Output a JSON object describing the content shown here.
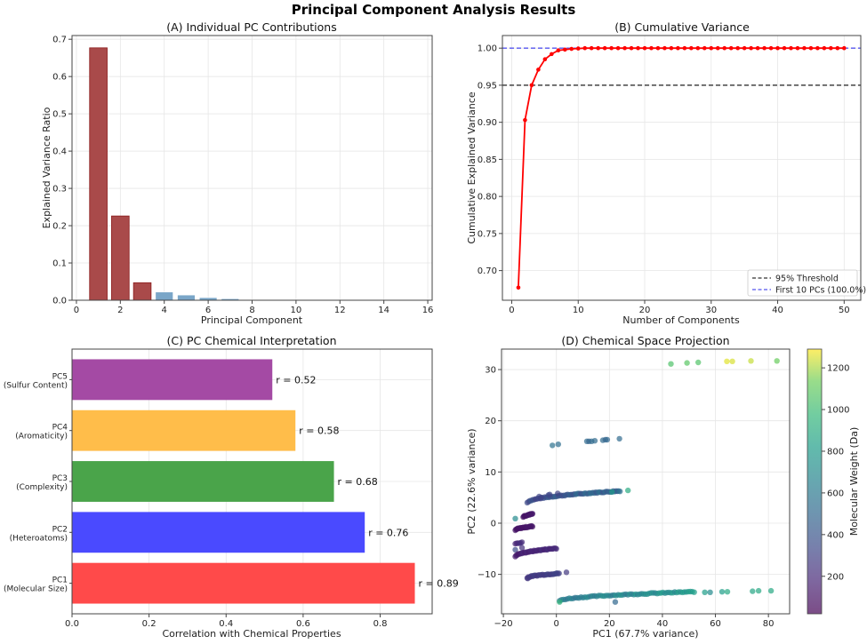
{
  "figure": {
    "title": "Principal Component Analysis Results"
  },
  "chart_data": [
    {
      "id": "A",
      "type": "bar",
      "title": "(A) Individual PC Contributions",
      "xlabel": "Principal Component",
      "ylabel": "Explained Variance Ratio",
      "categories": [
        1,
        2,
        3,
        4,
        5,
        6,
        7,
        8,
        9,
        10,
        11,
        12,
        13,
        14,
        15
      ],
      "values": [
        0.677,
        0.226,
        0.047,
        0.022,
        0.014,
        0.007,
        0.004,
        0.001,
        0.0005,
        0.0003,
        0.0002,
        0.0001,
        0.0001,
        0.0001,
        0.0001
      ],
      "highlight_first_n": 3,
      "colors": {
        "highlight": "#a94a4a",
        "highlight_edge": "#8b1a1a",
        "other": "#7aa6c8"
      },
      "xlim": [
        -0.2,
        16.2
      ],
      "ylim": [
        0,
        0.71
      ],
      "xticks": [
        0,
        2,
        4,
        6,
        8,
        10,
        12,
        14,
        16
      ],
      "yticks": [
        0.0,
        0.1,
        0.2,
        0.3,
        0.4,
        0.5,
        0.6,
        0.7
      ],
      "ytick_labels": [
        "0.0",
        "0.1",
        "0.2",
        "0.3",
        "0.4",
        "0.5",
        "0.6",
        "0.7"
      ],
      "grid": true
    },
    {
      "id": "B",
      "type": "line",
      "title": "(B) Cumulative Variance",
      "xlabel": "Number of Components",
      "ylabel": "Cumulative Explained Variance",
      "x": [
        1,
        2,
        3,
        4,
        5,
        6,
        7,
        8,
        9,
        10,
        11,
        12,
        13,
        14,
        15,
        16,
        17,
        18,
        19,
        20,
        21,
        22,
        23,
        24,
        25,
        26,
        27,
        28,
        29,
        30,
        31,
        32,
        33,
        34,
        35,
        36,
        37,
        38,
        39,
        40,
        41,
        42,
        43,
        44,
        45,
        46,
        47,
        48,
        49,
        50
      ],
      "y": [
        0.677,
        0.903,
        0.95,
        0.971,
        0.985,
        0.992,
        0.997,
        0.998,
        0.999,
        0.9995,
        1.0,
        1.0,
        1.0,
        1.0,
        1.0,
        1.0,
        1.0,
        1.0,
        1.0,
        1.0,
        1.0,
        1.0,
        1.0,
        1.0,
        1.0,
        1.0,
        1.0,
        1.0,
        1.0,
        1.0,
        1.0,
        1.0,
        1.0,
        1.0,
        1.0,
        1.0,
        1.0,
        1.0,
        1.0,
        1.0,
        1.0,
        1.0,
        1.0,
        1.0,
        1.0,
        1.0,
        1.0,
        1.0,
        1.0,
        1.0
      ],
      "line_color": "#ff0000",
      "hlines": [
        {
          "y": 0.95,
          "label": "95% Threshold",
          "color": "#333333"
        },
        {
          "y": 1.0,
          "label": "First 10 PCs (100.0%)",
          "color": "#5555ee"
        }
      ],
      "legend_position": "lower-right",
      "xlim": [
        -1.4,
        52.5
      ],
      "ylim": [
        0.66,
        1.017
      ],
      "xticks": [
        0,
        10,
        20,
        30,
        40,
        50
      ],
      "yticks": [
        0.7,
        0.75,
        0.8,
        0.85,
        0.9,
        0.95,
        1.0
      ],
      "ytick_labels": [
        "0.70",
        "0.75",
        "0.80",
        "0.85",
        "0.90",
        "0.95",
        "1.00"
      ],
      "grid": true
    },
    {
      "id": "C",
      "type": "bar",
      "orientation": "horizontal",
      "title": "(C) PC Chemical Interpretation",
      "xlabel": "Correlation with Chemical Properties",
      "ylabel": "",
      "categories": [
        {
          "pc": "PC1",
          "property": "(Molecular Size)"
        },
        {
          "pc": "PC2",
          "property": "(Heteroatoms)"
        },
        {
          "pc": "PC3",
          "property": "(Complexity)"
        },
        {
          "pc": "PC4",
          "property": "(Aromaticity)"
        },
        {
          "pc": "PC5",
          "property": "(Sulfur Content)"
        }
      ],
      "values": [
        0.89,
        0.76,
        0.68,
        0.58,
        0.52
      ],
      "value_labels": [
        "r = 0.89",
        "r = 0.76",
        "r = 0.68",
        "r = 0.58",
        "r = 0.52"
      ],
      "colors": [
        "#ff4a4a",
        "#4a4aff",
        "#4aa44a",
        "#ffbd4a",
        "#a44aa4"
      ],
      "xlim": [
        0,
        0.935
      ],
      "xticks": [
        0.0,
        0.2,
        0.4,
        0.6,
        0.8
      ],
      "xtick_labels": [
        "0.0",
        "0.2",
        "0.4",
        "0.6",
        "0.8"
      ],
      "grid": true
    },
    {
      "id": "D",
      "type": "scatter",
      "title": "(D) Chemical Space Projection",
      "xlabel": "PC1 (67.7% variance)",
      "ylabel": "PC2 (22.6% variance)",
      "colorbar": {
        "label": "Molecular Weight (Da)",
        "range": [
          20,
          1290
        ],
        "ticks": [
          200,
          400,
          600,
          800,
          1000,
          1200
        ],
        "colormap": "viridis"
      },
      "xlim": [
        -20.7,
        88
      ],
      "ylim": [
        -17.7,
        34
      ],
      "xticks": [
        -20,
        0,
        20,
        40,
        60,
        80
      ],
      "xtick_labels": [
        "−20",
        "0",
        "20",
        "40",
        "60",
        "80"
      ],
      "yticks": [
        -10,
        0,
        10,
        20,
        30
      ],
      "ytick_labels": [
        "−10",
        "0",
        "10",
        "20",
        "30"
      ],
      "grid": true,
      "clusters": [
        {
          "name": "top",
          "points": [
            [
              43.2,
              31.1,
              1050
            ],
            [
              49.3,
              31.3,
              1080
            ],
            [
              53.5,
              31.4,
              1060
            ],
            [
              64.3,
              31.6,
              1260
            ],
            [
              66.4,
              31.6,
              1250
            ],
            [
              73.4,
              31.7,
              1230
            ],
            [
              83.2,
              31.7,
              1120
            ]
          ]
        },
        {
          "name": "upper-mid",
          "points": [
            [
              -1.5,
              15.2,
              560
            ],
            [
              0.7,
              15.4,
              540
            ],
            [
              11.5,
              16.0,
              520
            ],
            [
              12.3,
              16.0,
              480
            ],
            [
              13.3,
              16.0,
              520
            ],
            [
              14.5,
              16.1,
              520
            ],
            [
              17.5,
              16.2,
              520
            ],
            [
              18.5,
              16.3,
              480
            ],
            [
              19.2,
              16.3,
              500
            ],
            [
              23.8,
              16.5,
              520
            ]
          ]
        },
        {
          "name": "band-5",
          "x_range": [
            -11,
            24
          ],
          "y_range": [
            4.0,
            6.3
          ],
          "mw_range": [
            260,
            600
          ],
          "n": 70,
          "extra": [
            [
              -6.5,
              5.2,
              320
            ],
            [
              -5.8,
              5.0,
              300
            ],
            [
              -3.0,
              5.5,
              330
            ],
            [
              -2.5,
              5.6,
              320
            ],
            [
              0.5,
              5.8,
              300
            ],
            [
              21,
              6.1,
              800
            ],
            [
              27.0,
              6.4,
              900
            ]
          ]
        },
        {
          "name": "band-1",
          "x_range": [
            -12.5,
            -9
          ],
          "y_range": [
            1.2,
            1.8
          ],
          "mw_range": [
            80,
            130
          ],
          "n": 18,
          "extra": [
            [
              -15.5,
              0.9,
              700
            ]
          ]
        },
        {
          "name": "band-0",
          "x_range": [
            -15.5,
            -9
          ],
          "y_range": [
            -1.4,
            -0.6
          ],
          "mw_range": [
            80,
            130
          ],
          "n": 24,
          "extra": []
        },
        {
          "name": "band-neg4",
          "x_range": [
            -15.5,
            -13
          ],
          "y_range": [
            -4.0,
            -3.8
          ],
          "mw_range": [
            150,
            250
          ],
          "n": 6,
          "extra": [
            [
              -15.5,
              -5.2,
              350
            ],
            [
              -13.0,
              -4.8,
              220
            ]
          ]
        },
        {
          "name": "band-neg6",
          "x_range": [
            -15.5,
            0
          ],
          "y_range": [
            -6.5,
            -4.9
          ],
          "mw_range": [
            100,
            240
          ],
          "n": 45,
          "extra": []
        },
        {
          "name": "band-neg10",
          "x_range": [
            -11,
            1
          ],
          "y_range": [
            -10.7,
            -9.8
          ],
          "mw_range": [
            220,
            330
          ],
          "n": 30,
          "extra": [
            [
              -10.8,
              -10.8,
              260
            ],
            [
              3.8,
              -9.6,
              260
            ]
          ]
        },
        {
          "name": "band-neg14",
          "x_range": [
            1.2,
            52
          ],
          "y_range": [
            -15.2,
            -13.4
          ],
          "mw_range": [
            520,
            860
          ],
          "n": 70,
          "extra": [
            [
              1.2,
              -15.4,
              950
            ],
            [
              22.2,
              -15.4,
              500
            ],
            [
              56,
              -13.5,
              820
            ],
            [
              58,
              -13.5,
              700
            ],
            [
              62.5,
              -13.4,
              820
            ],
            [
              64.5,
              -13.4,
              880
            ],
            [
              74,
              -13.3,
              860
            ],
            [
              76.3,
              -13.2,
              880
            ],
            [
              81,
              -13.2,
              880
            ]
          ]
        }
      ]
    }
  ]
}
